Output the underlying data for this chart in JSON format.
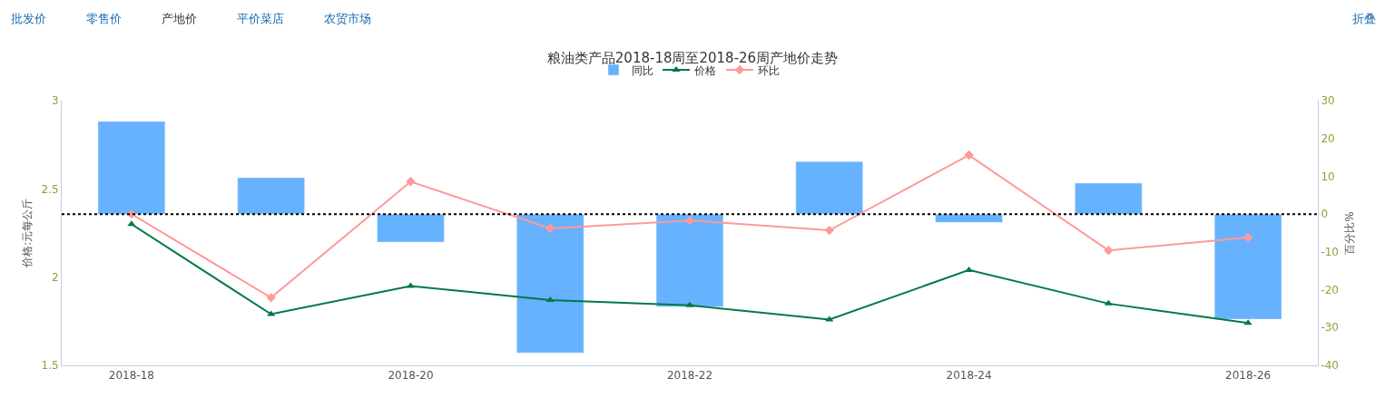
{
  "chart_data": {
    "type": "bar",
    "title": "粮油类产品2018-18周至2018-26周产地价走势",
    "categories": [
      "2018-18",
      null,
      "2018-20",
      null,
      "2018-22",
      null,
      "2018-24",
      null,
      "2018-26"
    ],
    "series": [
      {
        "name": "同比",
        "axis": "y2",
        "color": "#66b2ff",
        "values": [
          24.5,
          9.6,
          -7.4,
          -36.7,
          -24.5,
          13.9,
          -2.2,
          8.2,
          -27.8
        ]
      },
      {
        "name": "价格",
        "type": "line",
        "axis": "y",
        "marker": "triangle",
        "color": "#007a45",
        "values": [
          2.3,
          1.79,
          1.95,
          1.87,
          1.84,
          1.76,
          2.04,
          1.85,
          1.74
        ]
      },
      {
        "name": "环比",
        "type": "line",
        "axis": "y2",
        "marker": "diamond",
        "color": "#ff9999",
        "values": [
          0,
          -22.1,
          8.6,
          -3.8,
          -1.7,
          -4.3,
          15.6,
          -9.6,
          -6.2
        ]
      }
    ],
    "ylabel": "价格:元每公斤",
    "y2label": "百分比%",
    "ylim": [
      1.5,
      3
    ],
    "yticks": [
      1.5,
      2,
      2.5,
      3
    ],
    "y2lim": [
      -40,
      30
    ],
    "y2ticks": [
      -40,
      -30,
      -20,
      -10,
      0,
      10,
      20,
      30
    ],
    "ref_lines": [
      {
        "axis": "y2",
        "value": 0,
        "color": "#000000",
        "line_style": "dotted"
      }
    ],
    "legend": "top",
    "annotations": [
      "批发价",
      "零售价",
      "产地价",
      "平价菜店",
      "农贸市场",
      "折叠"
    ]
  }
}
